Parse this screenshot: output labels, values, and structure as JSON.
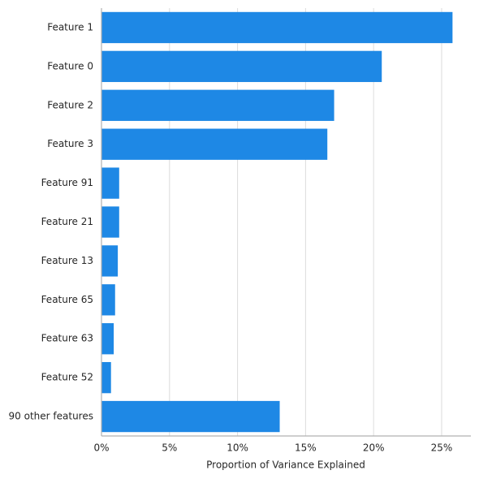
{
  "chart_data": {
    "type": "barh",
    "xlabel": "Proportion of Variance Explained",
    "categories": [
      "Feature 1",
      "Feature 0",
      "Feature 2",
      "Feature 3",
      "Feature 91",
      "Feature 21",
      "Feature 13",
      "Feature 65",
      "Feature 63",
      "Feature 52",
      "90 other features"
    ],
    "values": [
      25.8,
      20.6,
      17.1,
      16.6,
      1.3,
      1.3,
      1.2,
      1.0,
      0.9,
      0.7,
      13.1
    ],
    "color": "#1e88e5",
    "xlim": [
      0,
      27.15
    ],
    "xticks": [
      {
        "value": 0,
        "label": "0%"
      },
      {
        "value": 5,
        "label": "5%"
      },
      {
        "value": 10,
        "label": "10%"
      },
      {
        "value": 15,
        "label": "15%"
      },
      {
        "value": 20,
        "label": "20%"
      },
      {
        "value": 25,
        "label": "25%"
      }
    ],
    "grid": true
  }
}
